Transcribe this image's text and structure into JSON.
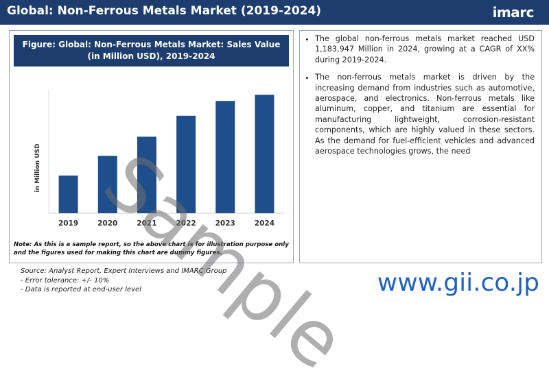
{
  "header": {
    "title": "Global: Non-Ferrous Metals Market (2019-2024)",
    "logo": "imarc"
  },
  "chart_data": {
    "type": "bar",
    "title": "Figure: Global: Non-Ferrous Metals Market: Sales Value (in Million USD), 2019-2024",
    "y_label": "in Million USD",
    "categories": [
      "2019",
      "2020",
      "2021",
      "2022",
      "2023",
      "2024"
    ],
    "values": [
      61,
      93,
      124,
      158,
      182,
      192
    ],
    "color": "#1f4e8c",
    "ylim": [
      0,
      200
    ]
  },
  "note": "Note: As this is a sample report, so the above chart is for illustration purpose only and the figures used for making this chart are dummy figures.",
  "bullets": [
    "The global non-ferrous metals market reached USD 1,183,947 Million in 2024, growing at a CAGR of XX% during 2019-2024.",
    "The non-ferrous metals market is driven by the increasing demand from industries such as automotive, aerospace, and electronics. Non-ferrous metals like aluminum, copper, and titanium are essential for manufacturing lightweight, corrosion-resistant components, which are highly valued in these sectors. As the demand for fuel-efficient vehicles and advanced aerospace technologies grows, the need"
  ],
  "sources": [
    "Source: Analyst Report, Expert Interviews and IMARC Group",
    "- Error tolerance: +/- 10%",
    "- Data is reported at end-user level"
  ],
  "watermark": "Sample",
  "footer_url": "www.gii.co.jp"
}
